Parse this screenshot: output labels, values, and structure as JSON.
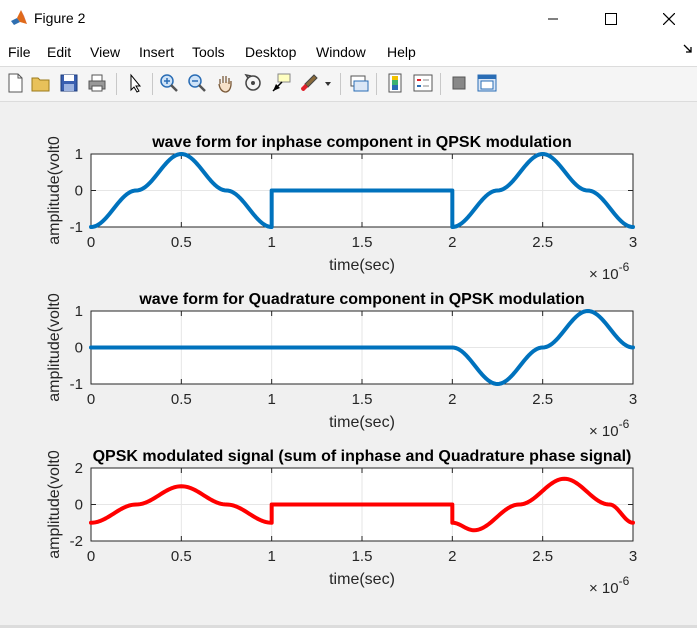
{
  "window": {
    "title": "Figure 2",
    "menu": [
      "File",
      "Edit",
      "View",
      "Insert",
      "Tools",
      "Desktop",
      "Window",
      "Help"
    ]
  },
  "toolbar": {
    "buttons": [
      "new-figure-icon",
      "open-file-icon",
      "save-icon",
      "print-icon",
      "pointer-icon",
      "zoom-in-icon",
      "zoom-out-icon",
      "pan-icon",
      "rotate-3d-icon",
      "data-cursor-icon",
      "brush-icon",
      "link-plot-icon",
      "colorbar-icon",
      "legend-icon",
      "hide-plot-tools-icon",
      "show-plot-tools-icon"
    ]
  },
  "colors": {
    "blue": "#0072bd",
    "red": "#ff0000",
    "axes_bg": "#ffffff",
    "figure_bg": "#f0f0f0"
  },
  "chart_data": [
    {
      "type": "line",
      "title": "wave form for inphase component in QPSK modulation",
      "xlabel": "time(sec)",
      "ylabel": "amplitude(volt0",
      "xlim": [
        0,
        3
      ],
      "ylim": [
        -1,
        1
      ],
      "xticks": [
        "0",
        "0.5",
        "1",
        "1.5",
        "2",
        "2.5",
        "3"
      ],
      "yticks": [
        "-1",
        "0",
        "1"
      ],
      "exponent": {
        "base": "× 10",
        "power": "-6"
      },
      "grid": true,
      "series": [
        {
          "color": "#0072bd",
          "x": [
            0,
            0.25,
            0.5,
            0.75,
            1,
            1,
            1.5,
            2,
            2,
            2.25,
            2.5,
            2.75,
            3
          ],
          "y": [
            -1,
            0,
            1,
            0,
            -1,
            0,
            0,
            0,
            -1,
            0,
            1,
            0,
            -1
          ]
        }
      ]
    },
    {
      "type": "line",
      "title": "wave form for Quadrature component in QPSK modulation",
      "xlabel": "time(sec)",
      "ylabel": "amplitude(volt0",
      "xlim": [
        0,
        3
      ],
      "ylim": [
        -1,
        1
      ],
      "xticks": [
        "0",
        "0.5",
        "1",
        "1.5",
        "2",
        "2.5",
        "3"
      ],
      "yticks": [
        "-1",
        "0",
        "1"
      ],
      "exponent": {
        "base": "× 10",
        "power": "-6"
      },
      "grid": true,
      "series": [
        {
          "color": "#0072bd",
          "x": [
            0,
            1,
            2,
            2.25,
            2.5,
            2.75,
            3
          ],
          "y": [
            0,
            0,
            0,
            -1,
            0,
            1,
            0
          ]
        }
      ]
    },
    {
      "type": "line",
      "title": "QPSK modulated signal (sum of inphase and Quadrature phase signal)",
      "xlabel": "time(sec)",
      "ylabel": "amplitude(volt0",
      "xlim": [
        0,
        3
      ],
      "ylim": [
        -2,
        2
      ],
      "xticks": [
        "0",
        "0.5",
        "1",
        "1.5",
        "2",
        "2.5",
        "3"
      ],
      "yticks": [
        "-2",
        "0",
        "2"
      ],
      "exponent": {
        "base": "× 10",
        "power": "-6"
      },
      "grid": true,
      "series": [
        {
          "color": "#ff0000",
          "x": [
            0,
            0.25,
            0.5,
            0.75,
            1,
            1,
            1.5,
            2,
            2,
            2.12,
            2.37,
            2.62,
            2.87,
            3
          ],
          "y": [
            -1,
            0,
            1,
            0,
            -1,
            0,
            0,
            0,
            -1,
            -1.41,
            0,
            1.41,
            0,
            -1
          ]
        }
      ]
    }
  ]
}
